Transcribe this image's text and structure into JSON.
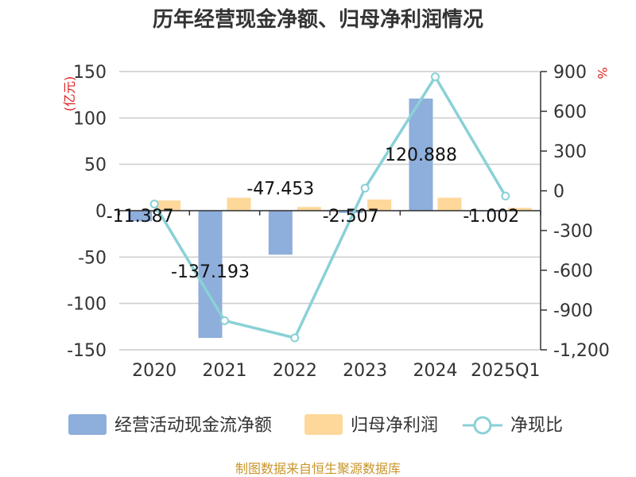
{
  "chart_data": {
    "type": "bar",
    "title": "历年经营现金净额、归母净利润情况",
    "categories": [
      "2020",
      "2021",
      "2022",
      "2023",
      "2024",
      "2025Q1"
    ],
    "series": [
      {
        "name": "经营活动现金流净额",
        "kind": "bar",
        "axis": "left",
        "color": "#8eaedb",
        "values": [
          -11.387,
          -137.193,
          -47.453,
          -2.507,
          120.888,
          -1.002
        ]
      },
      {
        "name": "归母净利润",
        "kind": "bar",
        "axis": "left",
        "color": "#fdd89a",
        "values": [
          11,
          14,
          4,
          12,
          14,
          3
        ]
      },
      {
        "name": "净现比",
        "kind": "line",
        "axis": "right",
        "color": "#89d1d6",
        "values": [
          -100,
          -980,
          -1110,
          20,
          860,
          -40
        ]
      }
    ],
    "data_labels": [
      "-11.387",
      "-137.193",
      "-47.453",
      "-2.507",
      "120.888",
      "-1.002"
    ],
    "y_left": {
      "unit": "(亿元)",
      "ylim": [
        -150,
        150
      ],
      "ticks": [
        150,
        100,
        50,
        0,
        -50,
        -100,
        -150
      ],
      "tick_labels": [
        "150",
        "100",
        "50",
        "0",
        "-50",
        "-100",
        "-150"
      ]
    },
    "y_right": {
      "unit": "%",
      "ylim": [
        -1200,
        900
      ],
      "ticks": [
        900,
        600,
        300,
        0,
        -300,
        -600,
        -900,
        -1200
      ],
      "tick_labels": [
        "900",
        "600",
        "300",
        "0",
        "-300",
        "-600",
        "-900",
        "-1,200"
      ]
    },
    "legend": [
      "经营活动现金流净额",
      "归母净利润",
      "净现比"
    ],
    "grid": true
  },
  "source": "制图数据来自恒生聚源数据库"
}
